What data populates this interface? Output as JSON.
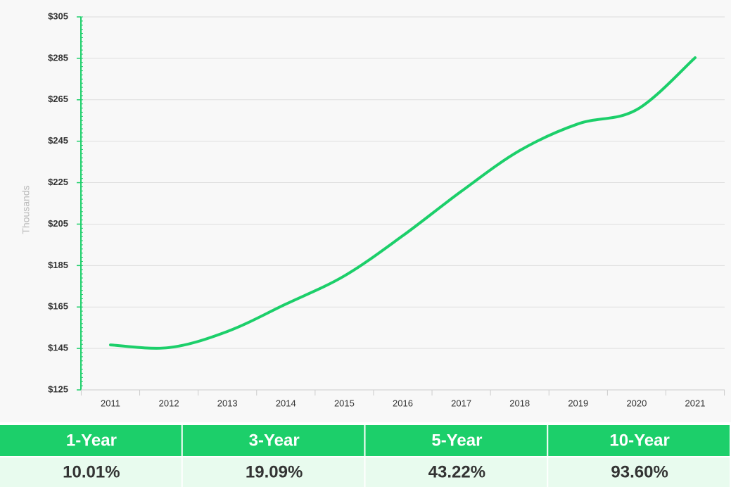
{
  "chart_data": {
    "type": "line",
    "categories": [
      "2011",
      "2012",
      "2013",
      "2014",
      "2015",
      "2016",
      "2017",
      "2018",
      "2019",
      "2020",
      "2021"
    ],
    "values": [
      146.7,
      145.4,
      153.2,
      166.4,
      180,
      199.4,
      220.8,
      240.5,
      253.4,
      260.2,
      285.3
    ],
    "color": "#1ccf6a",
    "y_axis_label": "Thousands",
    "ylim": [
      125,
      305
    ],
    "yticks": [
      {
        "value": 125,
        "label": "$125"
      },
      {
        "value": 145,
        "label": "$145"
      },
      {
        "value": 165,
        "label": "$165"
      },
      {
        "value": 185,
        "label": "$185"
      },
      {
        "value": 205,
        "label": "$205"
      },
      {
        "value": 225,
        "label": "$225"
      },
      {
        "value": 245,
        "label": "$245"
      },
      {
        "value": 265,
        "label": "$265"
      },
      {
        "value": 285,
        "label": "$285"
      },
      {
        "value": 305,
        "label": "$305"
      }
    ],
    "grid": true
  },
  "table": {
    "headers": [
      "1-Year",
      "3-Year",
      "5-Year",
      "10-Year"
    ],
    "values": [
      "10.01%",
      "19.09%",
      "43.22%",
      "93.60%"
    ]
  }
}
